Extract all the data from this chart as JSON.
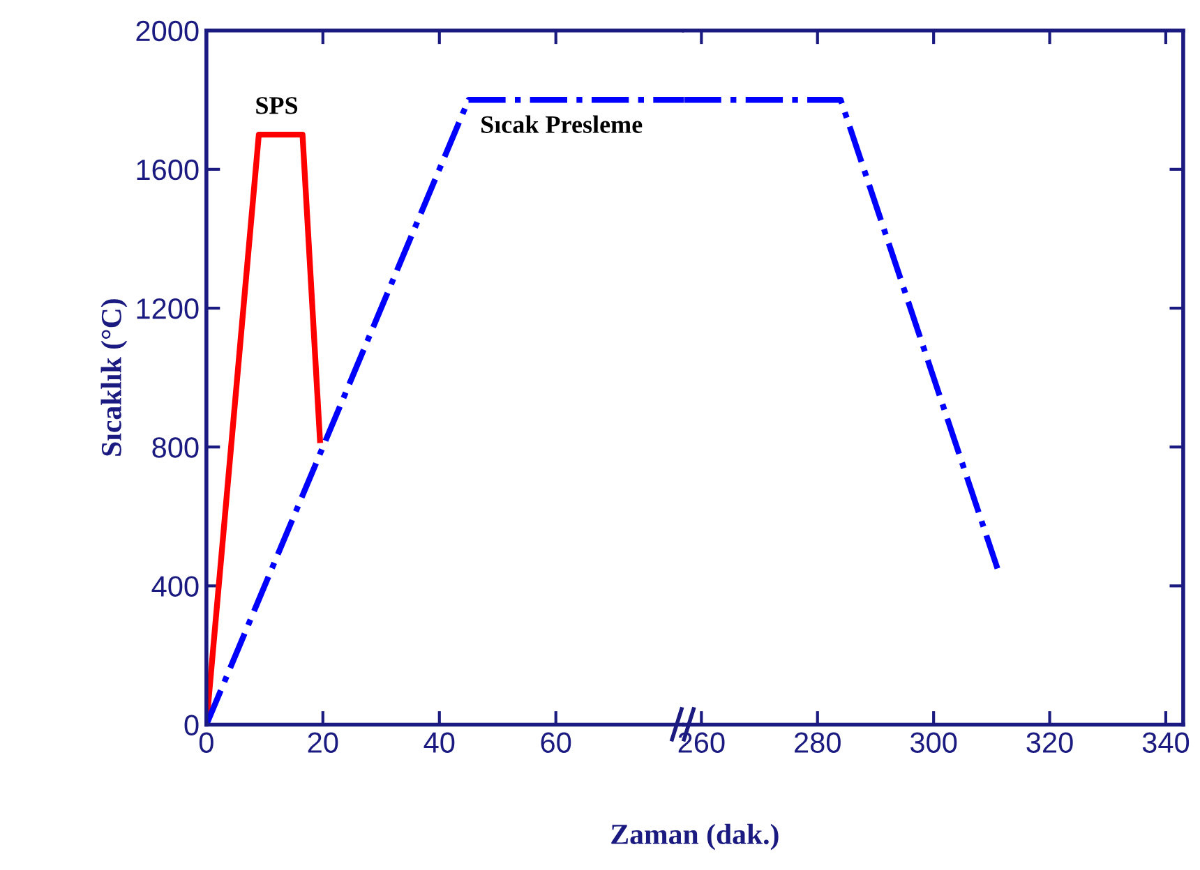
{
  "chart_data": [
    {
      "type": "line",
      "xlabel": "Zaman (dak.)",
      "ylabel": "Sıcaklık (°C)",
      "xlim": [
        0,
        82
      ],
      "xticks": [
        0,
        20,
        40,
        60
      ],
      "ylim": [
        0,
        2000
      ],
      "yticks": [
        0,
        400,
        800,
        1200,
        1600,
        2000
      ],
      "grid": false,
      "legend": false,
      "marker": "none",
      "series": [
        {
          "name": "SPS",
          "color": "#ff0000",
          "line_style": "solid",
          "x": [
            0,
            9,
            16.5,
            19.5
          ],
          "values": [
            0,
            1700,
            1700,
            820
          ]
        },
        {
          "name": "Sıcak Presleme",
          "color": "#0000ff",
          "line_style": "dashdot",
          "x": [
            0,
            45,
            82
          ],
          "values": [
            0,
            1800,
            1800
          ]
        }
      ]
    },
    {
      "type": "line",
      "xlim": [
        257,
        343
      ],
      "xticks": [
        260,
        280,
        300,
        320,
        340
      ],
      "ylim": [
        0,
        2000
      ],
      "yticks": [
        0,
        400,
        800,
        1200,
        1600,
        2000
      ],
      "tick_labels": "x",
      "grid": false,
      "legend": false,
      "marker": "none",
      "series": [
        {
          "color": "#0000ff",
          "line_style": "dashdot",
          "x": [
            257,
            284,
            311
          ],
          "values": [
            1800,
            1800,
            450
          ]
        }
      ]
    }
  ]
}
